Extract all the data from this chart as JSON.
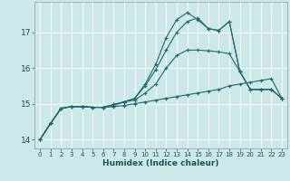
{
  "xlabel": "Humidex (Indice chaleur)",
  "background_color": "#cce8e8",
  "grid_color": "#ffffff",
  "line_color": "#1a6b6b",
  "xlim": [
    -0.5,
    23.5
  ],
  "ylim": [
    13.75,
    17.85
  ],
  "yticks": [
    14,
    15,
    16,
    17
  ],
  "xticks": [
    0,
    1,
    2,
    3,
    4,
    5,
    6,
    7,
    8,
    9,
    10,
    11,
    12,
    13,
    14,
    15,
    16,
    17,
    18,
    19,
    20,
    21,
    22,
    23
  ],
  "series": [
    {
      "x": [
        0,
        1,
        2,
        3,
        4,
        5,
        6,
        7,
        8,
        9,
        10,
        11,
        12,
        13,
        14,
        15,
        16,
        17,
        18,
        19,
        20,
        21,
        22,
        23
      ],
      "y": [
        14.0,
        14.45,
        14.87,
        14.92,
        14.92,
        14.9,
        14.9,
        14.92,
        14.95,
        15.0,
        15.05,
        15.1,
        15.15,
        15.2,
        15.25,
        15.3,
        15.35,
        15.4,
        15.5,
        15.55,
        15.6,
        15.65,
        15.7,
        15.15
      ]
    },
    {
      "x": [
        0,
        1,
        2,
        3,
        4,
        5,
        6,
        7,
        8,
        9,
        10,
        11,
        12,
        13,
        14,
        15,
        16,
        17,
        18,
        19,
        20,
        21,
        22,
        23
      ],
      "y": [
        14.0,
        14.45,
        14.87,
        14.92,
        14.92,
        14.9,
        14.9,
        14.95,
        15.05,
        15.1,
        15.3,
        15.55,
        16.0,
        16.35,
        16.5,
        16.5,
        16.48,
        16.45,
        16.4,
        15.9,
        15.4,
        15.4,
        15.4,
        15.15
      ]
    },
    {
      "x": [
        0,
        1,
        2,
        3,
        4,
        5,
        6,
        7,
        8,
        9,
        10,
        11,
        12,
        13,
        14,
        15,
        16,
        17,
        18,
        19,
        20,
        21,
        22,
        23
      ],
      "y": [
        14.0,
        14.45,
        14.87,
        14.92,
        14.92,
        14.9,
        14.9,
        14.98,
        15.05,
        15.15,
        15.5,
        15.95,
        16.5,
        17.0,
        17.3,
        17.4,
        17.1,
        17.05,
        17.3,
        15.9,
        15.4,
        15.4,
        15.4,
        15.15
      ]
    },
    {
      "x": [
        0,
        1,
        2,
        3,
        4,
        5,
        6,
        7,
        8,
        9,
        10,
        11,
        12,
        13,
        14,
        15,
        16,
        17,
        18,
        19,
        20,
        21,
        22,
        23
      ],
      "y": [
        14.0,
        14.45,
        14.87,
        14.92,
        14.92,
        14.9,
        14.9,
        14.98,
        15.05,
        15.15,
        15.55,
        16.1,
        16.85,
        17.35,
        17.55,
        17.35,
        17.1,
        17.05,
        17.3,
        15.9,
        15.4,
        15.4,
        15.4,
        15.15
      ]
    }
  ]
}
